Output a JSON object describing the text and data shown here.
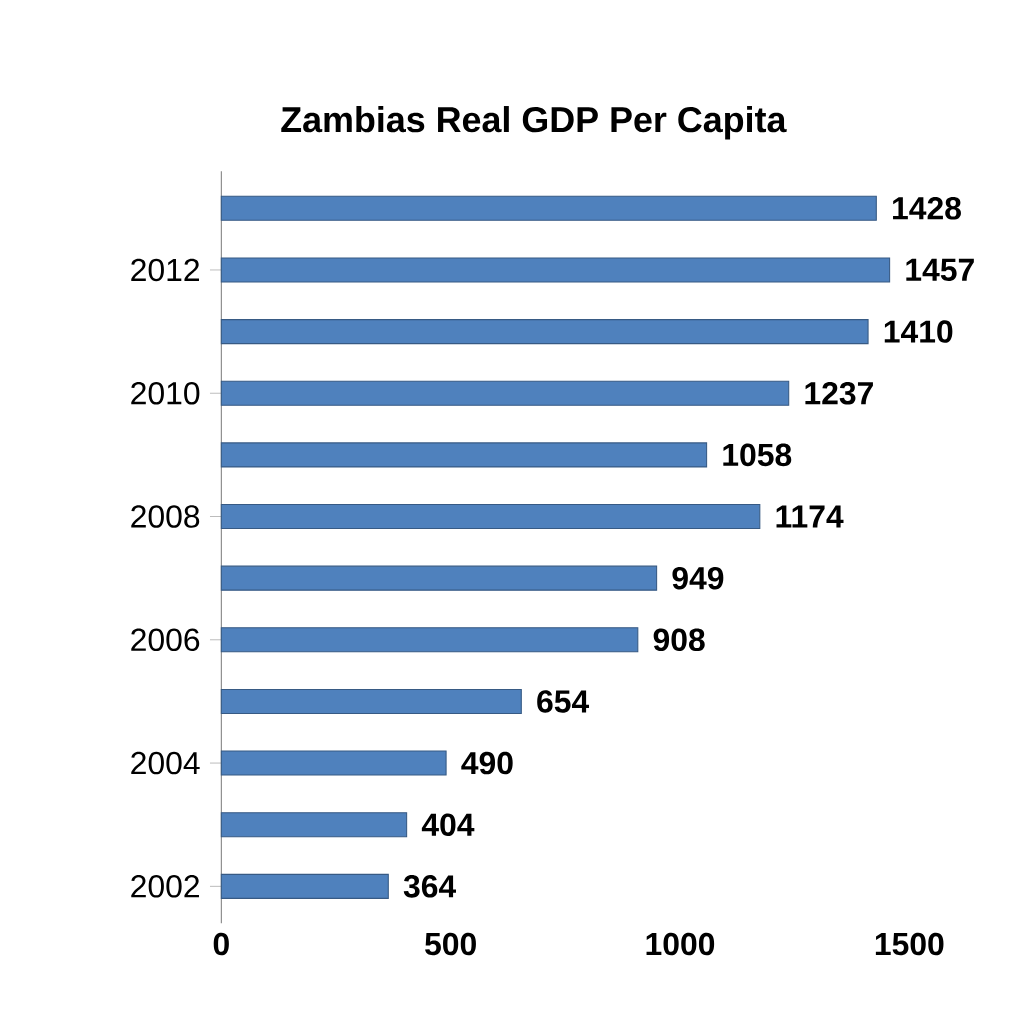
{
  "chart_data": {
    "type": "bar",
    "orientation": "horizontal",
    "title": "Zambias Real GDP Per Capita",
    "categories": [
      null,
      "2012",
      null,
      "2010",
      null,
      "2008",
      null,
      "2006",
      null,
      "2004",
      null,
      "2002"
    ],
    "values": [
      1428,
      1457,
      1410,
      1237,
      1058,
      1174,
      949,
      908,
      654,
      490,
      404,
      364
    ],
    "color": "#4f81bd",
    "xlim": [
      0,
      1500
    ],
    "xticks": [
      0,
      500,
      1000,
      1500
    ],
    "data_labels": true
  }
}
